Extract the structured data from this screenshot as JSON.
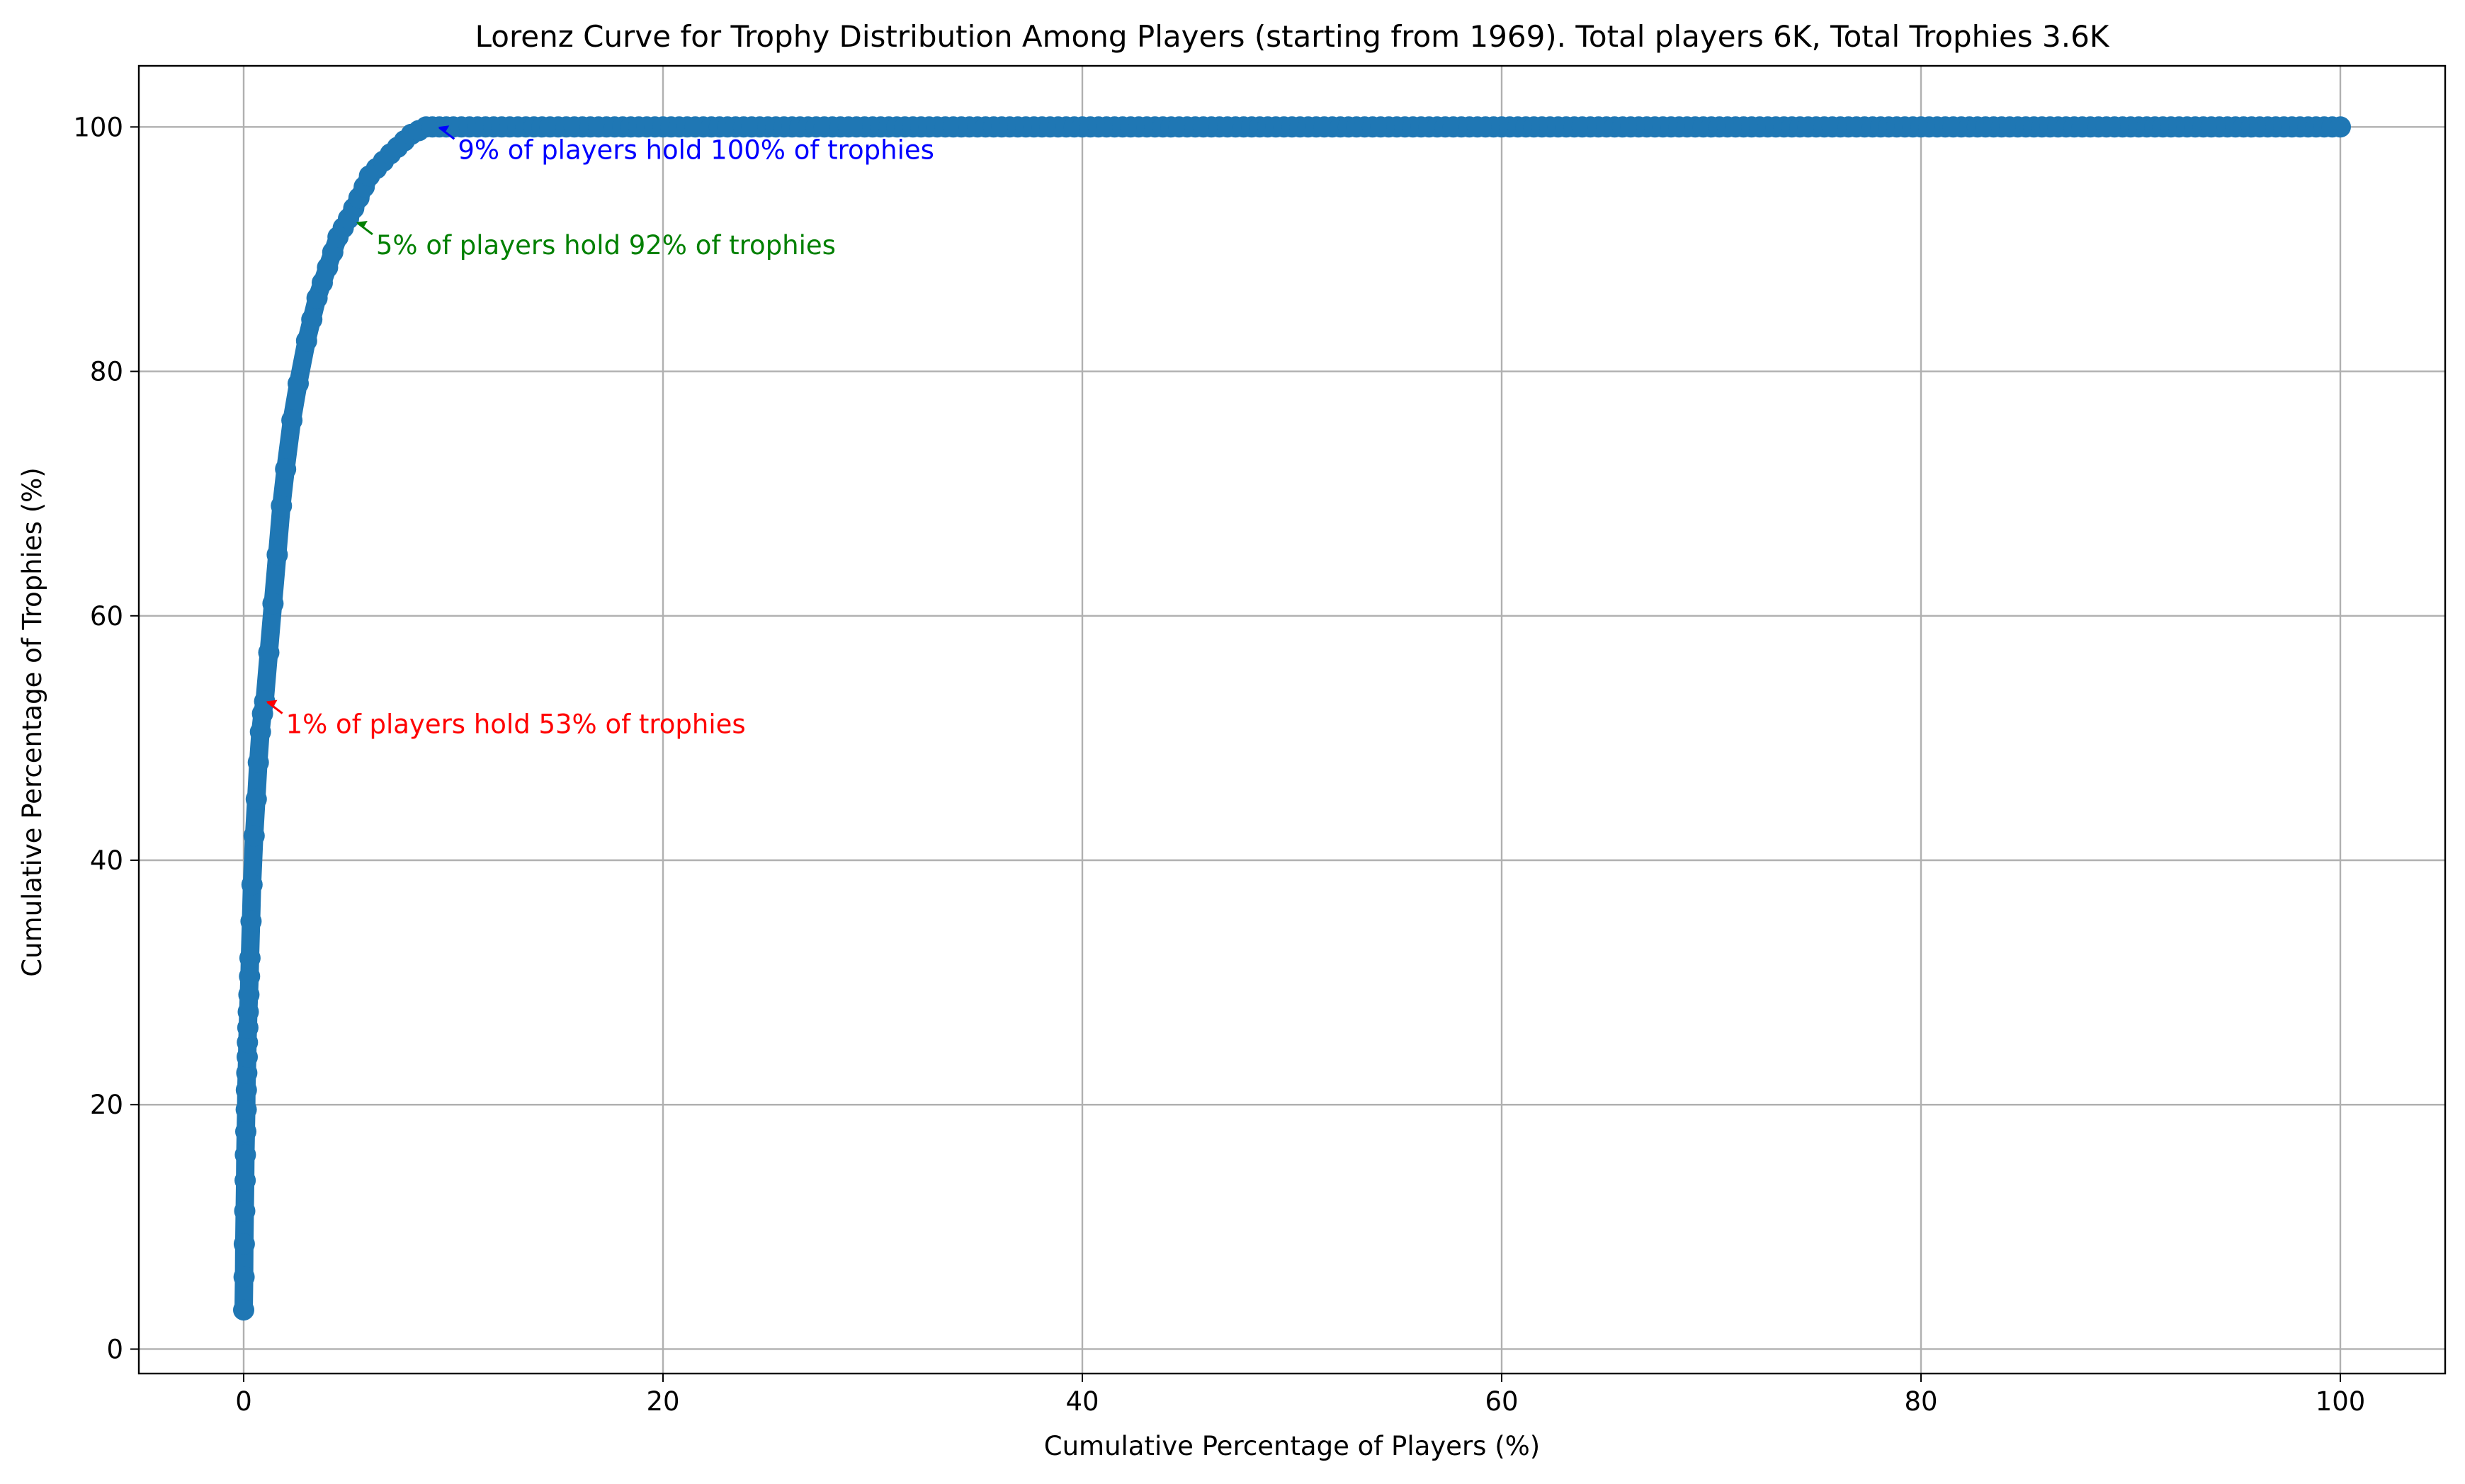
{
  "chart_data": {
    "type": "line",
    "title": "Lorenz Curve for Trophy Distribution Among Players (starting from 1969). Total players 6K, Total Trophies 3.6K",
    "xlabel": "Cumulative Percentage of Players (%)",
    "ylabel": "Cumulative Percentage of Trophies (%)",
    "xlim": [
      -5,
      105
    ],
    "ylim": [
      -2,
      105
    ],
    "grid": true,
    "x_ticks": [
      0,
      20,
      40,
      60,
      80,
      100
    ],
    "y_ticks": [
      0,
      20,
      40,
      60,
      80,
      100
    ],
    "x_tick_labels": [
      "0",
      "20",
      "40",
      "60",
      "80",
      "100"
    ],
    "y_tick_labels": [
      "0",
      "20",
      "40",
      "60",
      "80",
      "100"
    ],
    "series_color": "#1f77b4",
    "marker": "circle",
    "series": [
      {
        "x": [
          0,
          0.02,
          0.03,
          0.05,
          0.07,
          0.08,
          0.1,
          0.12,
          0.13,
          0.15,
          0.17,
          0.18,
          0.2,
          0.22,
          0.25,
          0.28,
          0.3,
          0.35,
          0.4,
          0.5,
          0.6,
          0.7,
          0.8,
          0.9,
          1.0,
          1.2,
          1.4,
          1.6,
          1.8,
          2.0,
          2.3,
          2.6,
          3.0,
          3.5,
          4.0,
          4.5,
          5.0,
          5.5,
          6.0,
          7.0,
          8.0,
          8.7,
          9.0,
          10,
          15,
          20,
          25,
          30,
          35,
          40,
          45,
          50,
          55,
          60,
          65,
          70,
          75,
          80,
          85,
          90,
          95,
          100
        ],
        "y": [
          3.2,
          5.9,
          8.6,
          11.3,
          13.8,
          15.9,
          17.8,
          19.6,
          21.2,
          22.6,
          23.9,
          25.1,
          26.3,
          27.6,
          29.0,
          30.5,
          32.0,
          35.0,
          38.0,
          42.0,
          45.0,
          48.0,
          50.5,
          52.0,
          53.0,
          57.0,
          61.0,
          65.0,
          69.0,
          72.0,
          76.0,
          79.0,
          82.5,
          86.0,
          88.5,
          91.0,
          92.5,
          94.2,
          96.0,
          97.8,
          99.4,
          100,
          100,
          100,
          100,
          100,
          100,
          100,
          100,
          100,
          100,
          100,
          100,
          100,
          100,
          100,
          100,
          100,
          100,
          100,
          100,
          100
        ]
      }
    ],
    "annotations": [
      {
        "text": "1% of players hold 53% of trophies",
        "point": [
          1.0,
          53.0
        ],
        "color": "#ff0000"
      },
      {
        "text": "5% of players hold 92% of trophies",
        "point": [
          5.3,
          92.2
        ],
        "color": "#008000"
      },
      {
        "text": "9% of players hold 100% of trophies",
        "point": [
          9.2,
          100.0
        ],
        "color": "#0000ff"
      }
    ]
  }
}
